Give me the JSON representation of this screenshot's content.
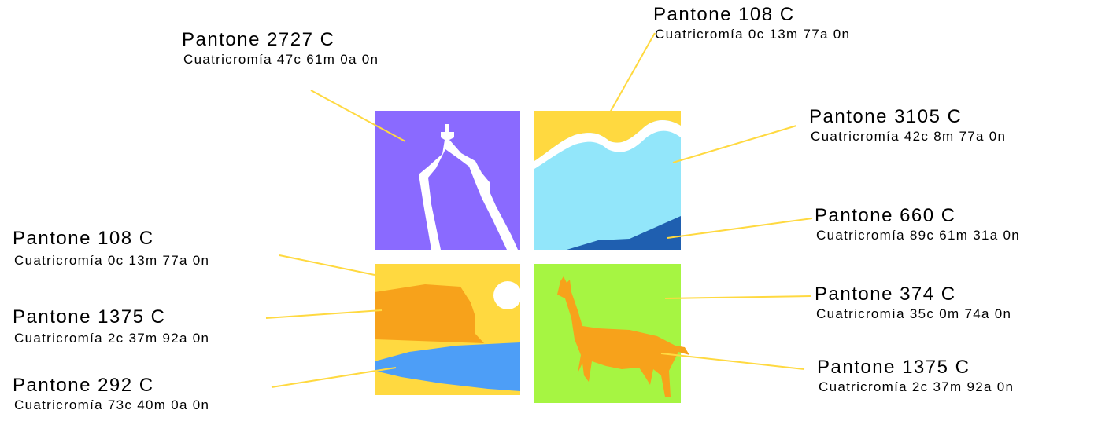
{
  "labels": [
    {
      "title": "Pantone 2727 C",
      "subtitle": "Cuatricromía 47c 61m 0a 0n"
    },
    {
      "title": "Pantone 108 C",
      "subtitle": "Cuatricromía 0c 13m 77a 0n"
    },
    {
      "title": "Pantone 3105 C",
      "subtitle": "Cuatricromía 42c 8m 77a 0n"
    },
    {
      "title": "Pantone 660 C",
      "subtitle": "Cuatricromía 89c 61m 31a 0n"
    },
    {
      "title": "Pantone 108 C",
      "subtitle": "Cuatricromía 0c 13m 77a 0n"
    },
    {
      "title": "Pantone 1375 C",
      "subtitle": "Cuatricromía 2c 37m 92a 0n"
    },
    {
      "title": "Pantone 292 C",
      "subtitle": "Cuatricromía 73c 40m 0a 0n"
    },
    {
      "title": "Pantone 374 C",
      "subtitle": "Cuatricromía 35c 0m 74a 0n"
    },
    {
      "title": "Pantone 1375 C",
      "subtitle": "Cuatricromía 2c 37m 92a 0n"
    }
  ]
}
